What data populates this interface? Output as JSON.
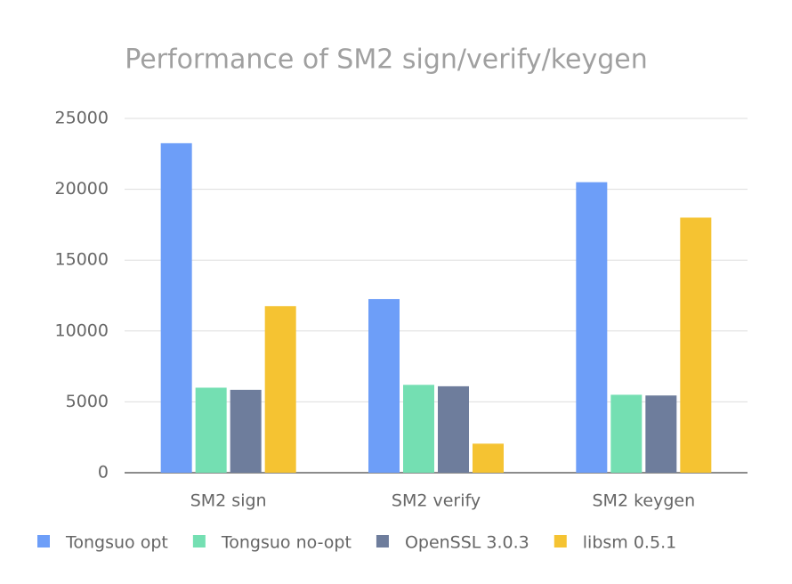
{
  "chart_data": {
    "type": "bar",
    "title": "Performance of SM2 sign/verify/keygen",
    "categories": [
      "SM2 sign",
      "SM2 verify",
      "SM2 keygen"
    ],
    "series": [
      {
        "name": "Tongsuo opt",
        "color": "#6d9ef8",
        "values": [
          23250,
          12250,
          20500
        ]
      },
      {
        "name": "Tongsuo no-opt",
        "color": "#74dfb2",
        "values": [
          6000,
          6200,
          5500
        ]
      },
      {
        "name": "OpenSSL 3.0.3",
        "color": "#6e7d9c",
        "values": [
          5850,
          6100,
          5450
        ]
      },
      {
        "name": "libsm 0.5.1",
        "color": "#f5c332",
        "values": [
          11750,
          2050,
          18000
        ]
      }
    ],
    "ylim": [
      0,
      25000
    ],
    "yticks": [
      0,
      5000,
      10000,
      15000,
      20000,
      25000
    ],
    "grid": true,
    "legend": "bottom"
  }
}
